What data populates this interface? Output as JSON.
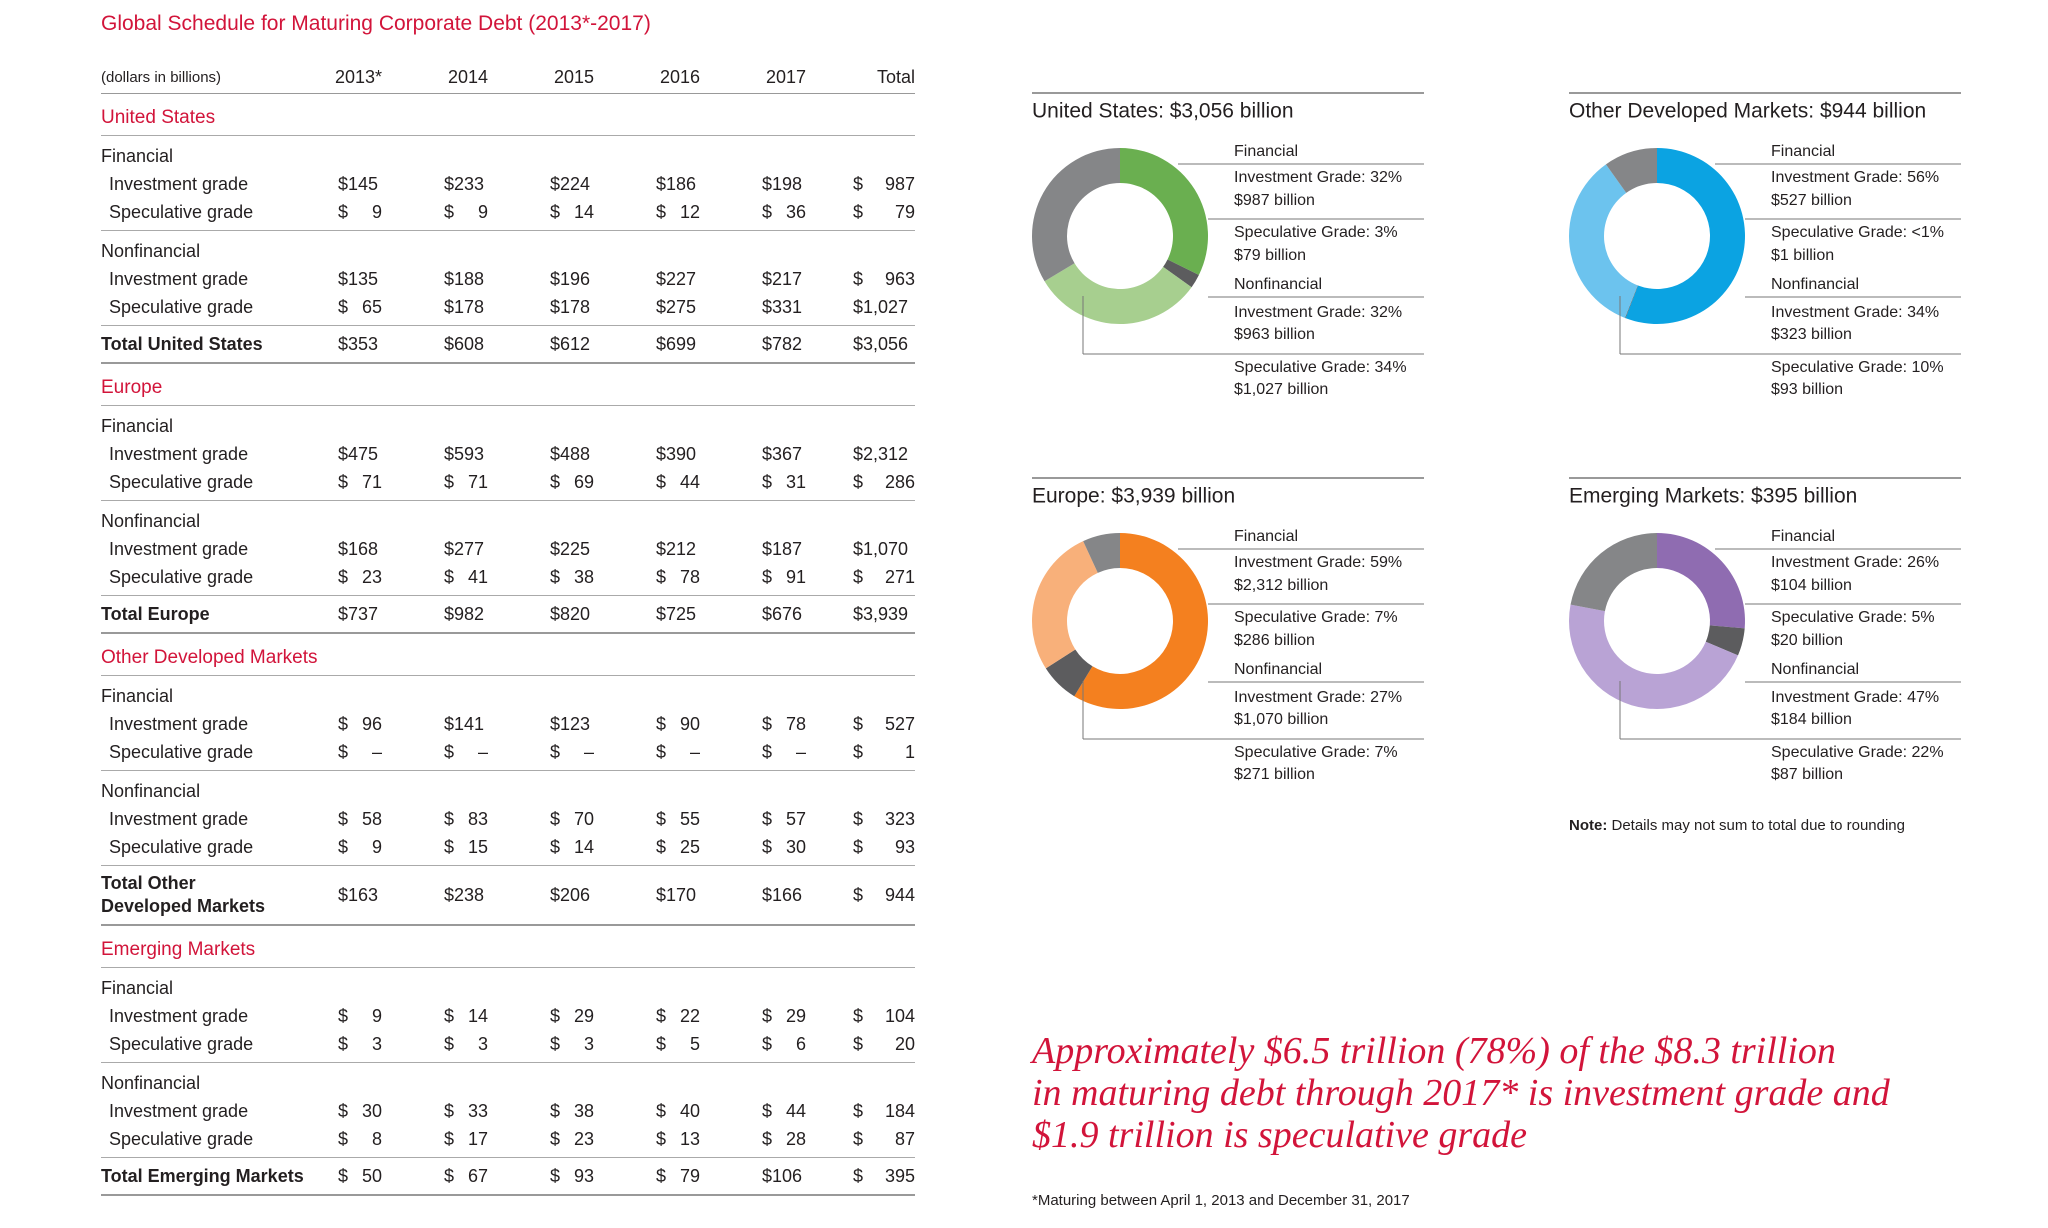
{
  "table": {
    "title": "Global Schedule for Maturing Corporate Debt (2013*-2017)",
    "unit": "(dollars in billions)",
    "columns": [
      "2013*",
      "2014",
      "2015",
      "2016",
      "2017",
      "Total"
    ],
    "sections": [
      {
        "name": "United States",
        "groups": [
          {
            "name": "Financial",
            "rows": [
              {
                "label": "Investment grade",
                "cells": [
                  "$145",
                  "$233",
                  "$224",
                  "$186",
                  "$198",
                  "$ 987"
                ]
              },
              {
                "label": "Speculative grade",
                "cells": [
                  "$ 9",
                  "$ 9",
                  "$ 14",
                  "$ 12",
                  "$ 36",
                  "$ 79"
                ]
              }
            ]
          },
          {
            "name": "Nonfinancial",
            "rows": [
              {
                "label": "Investment grade",
                "cells": [
                  "$135",
                  "$188",
                  "$196",
                  "$227",
                  "$217",
                  "$ 963"
                ]
              },
              {
                "label": "Speculative grade",
                "cells": [
                  "$ 65",
                  "$178",
                  "$178",
                  "$275",
                  "$331",
                  "$1,027"
                ]
              }
            ]
          }
        ],
        "total": {
          "label": "Total United States",
          "cells": [
            "$353",
            "$608",
            "$612",
            "$699",
            "$782",
            "$3,056"
          ]
        }
      },
      {
        "name": "Europe",
        "groups": [
          {
            "name": "Financial",
            "rows": [
              {
                "label": "Investment grade",
                "cells": [
                  "$475",
                  "$593",
                  "$488",
                  "$390",
                  "$367",
                  "$2,312"
                ]
              },
              {
                "label": "Speculative grade",
                "cells": [
                  "$ 71",
                  "$ 71",
                  "$ 69",
                  "$ 44",
                  "$ 31",
                  "$ 286"
                ]
              }
            ]
          },
          {
            "name": "Nonfinancial",
            "rows": [
              {
                "label": "Investment grade",
                "cells": [
                  "$168",
                  "$277",
                  "$225",
                  "$212",
                  "$187",
                  "$1,070"
                ]
              },
              {
                "label": "Speculative grade",
                "cells": [
                  "$ 23",
                  "$ 41",
                  "$ 38",
                  "$ 78",
                  "$ 91",
                  "$ 271"
                ]
              }
            ]
          }
        ],
        "total": {
          "label": "Total Europe",
          "cells": [
            "$737",
            "$982",
            "$820",
            "$725",
            "$676",
            "$3,939"
          ]
        }
      },
      {
        "name": "Other Developed Markets",
        "groups": [
          {
            "name": "Financial",
            "rows": [
              {
                "label": "Investment grade",
                "cells": [
                  "$ 96",
                  "$141",
                  "$123",
                  "$ 90",
                  "$ 78",
                  "$ 527"
                ]
              },
              {
                "label": "Speculative grade",
                "cells": [
                  "$ –",
                  "$ –",
                  "$ –",
                  "$ –",
                  "$ –",
                  "$ 1"
                ]
              }
            ]
          },
          {
            "name": "Nonfinancial",
            "rows": [
              {
                "label": "Investment grade",
                "cells": [
                  "$ 58",
                  "$ 83",
                  "$ 70",
                  "$ 55",
                  "$ 57",
                  "$ 323"
                ]
              },
              {
                "label": "Speculative grade",
                "cells": [
                  "$ 9",
                  "$ 15",
                  "$ 14",
                  "$ 25",
                  "$ 30",
                  "$ 93"
                ]
              }
            ]
          }
        ],
        "total": {
          "label": "Total Other\nDeveloped Markets",
          "cells": [
            "$163",
            "$238",
            "$206",
            "$170",
            "$166",
            "$ 944"
          ]
        }
      },
      {
        "name": "Emerging Markets",
        "groups": [
          {
            "name": "Financial",
            "rows": [
              {
                "label": "Investment grade",
                "cells": [
                  "$ 9",
                  "$ 14",
                  "$ 29",
                  "$ 22",
                  "$ 29",
                  "$ 104"
                ]
              },
              {
                "label": "Speculative grade",
                "cells": [
                  "$ 3",
                  "$ 3",
                  "$ 3",
                  "$ 5",
                  "$ 6",
                  "$ 20"
                ]
              }
            ]
          },
          {
            "name": "Nonfinancial",
            "rows": [
              {
                "label": "Investment grade",
                "cells": [
                  "$ 30",
                  "$ 33",
                  "$ 38",
                  "$ 40",
                  "$ 44",
                  "$ 184"
                ]
              },
              {
                "label": "Speculative grade",
                "cells": [
                  "$ 8",
                  "$ 17",
                  "$ 23",
                  "$ 13",
                  "$ 28",
                  "$ 87"
                ]
              }
            ]
          }
        ],
        "total": {
          "label": "Total Emerging Markets",
          "cells": [
            "$ 50",
            "$ 67",
            "$ 93",
            "$ 79",
            "$106",
            "$ 395"
          ]
        }
      }
    ]
  },
  "chart_data": [
    {
      "type": "donut",
      "title": "United States: $3,056 billion",
      "groups": [
        "Financial",
        "Nonfinancial"
      ],
      "categories": [
        "Investment Grade: 32%",
        "Speculative Grade: 3%",
        "Investment Grade: 32%",
        "Speculative Grade: 34%"
      ],
      "values": [
        987,
        79,
        963,
        1027
      ],
      "value_labels": [
        "$987 billion",
        "$79 billion",
        "$963 billion",
        "$1,027 billion"
      ],
      "colors": [
        "#6aaf50",
        "#5c5c5e",
        "#a7cf8f",
        "#858688"
      ]
    },
    {
      "type": "donut",
      "title": "Other Developed Markets: $944 billion",
      "groups": [
        "Financial",
        "Nonfinancial"
      ],
      "categories": [
        "Investment Grade: 56%",
        "Speculative Grade: <1%",
        "Investment Grade: 34%",
        "Speculative Grade: 10%"
      ],
      "values": [
        527,
        1,
        323,
        93
      ],
      "value_labels": [
        "$527 billion",
        "$1 billion",
        "$323 billion",
        "$93 billion"
      ],
      "colors": [
        "#0ba3e2",
        "#5c5c5e",
        "#6cc3ee",
        "#858688"
      ]
    },
    {
      "type": "donut",
      "title": "Europe: $3,939 billion",
      "groups": [
        "Financial",
        "Nonfinancial"
      ],
      "categories": [
        "Investment Grade: 59%",
        "Speculative Grade: 7%",
        "Investment Grade: 27%",
        "Speculative Grade: 7%"
      ],
      "values": [
        2312,
        286,
        1070,
        271
      ],
      "value_labels": [
        "$2,312 billion",
        "$286 billion",
        "$1,070 billion",
        "$271 billion"
      ],
      "colors": [
        "#f4801f",
        "#5c5c5e",
        "#f8b07a",
        "#858688"
      ]
    },
    {
      "type": "donut",
      "title": "Emerging Markets: $395 billion",
      "groups": [
        "Financial",
        "Nonfinancial"
      ],
      "categories": [
        "Investment Grade: 26%",
        "Speculative Grade: 5%",
        "Investment Grade: 47%",
        "Speculative Grade: 22%"
      ],
      "values": [
        104,
        20,
        184,
        87
      ],
      "value_labels": [
        "$104 billion",
        "$20 billion",
        "$184 billion",
        "$87 billion"
      ],
      "colors": [
        "#8f6cb1",
        "#5c5c5e",
        "#b9a3d5",
        "#858688"
      ]
    }
  ],
  "note": {
    "label": "Note:",
    "text": "Details may not sum to total due to rounding"
  },
  "callout": [
    "Approximately $6.5 trillion (78%) of the $8.3 trillion",
    "in maturing debt through 2017* is investment grade and",
    "$1.9 trillion is speculative grade"
  ],
  "footnote": "*Maturing between April 1, 2013 and December 31, 2017"
}
